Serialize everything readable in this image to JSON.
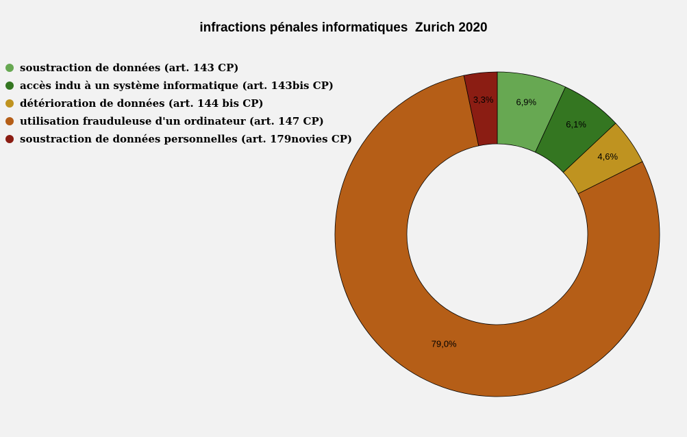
{
  "chart_data": {
    "type": "pie",
    "title": "infractions pénales informatiques  Zurich 2020",
    "donut": true,
    "legend_position": "top-left",
    "slices": [
      {
        "label": "soustraction de données (art. 143 CP)",
        "value": 6.9,
        "value_label": "6,9%",
        "color": "#67a852"
      },
      {
        "label": "accès indu à un système informatique (art. 143bis CP)",
        "value": 6.1,
        "value_label": "6,1%",
        "color": "#347621"
      },
      {
        "label": "détérioration de données (art. 144 bis CP)",
        "value": 4.6,
        "value_label": "4,6%",
        "color": "#bf9320"
      },
      {
        "label": "utilisation frauduleuse d'un ordinateur (art. 147 CP)",
        "value": 79.0,
        "value_label": "79,0%",
        "color": "#b55e17"
      },
      {
        "label": "soustraction de données personnelles (art. 179novies CP)",
        "value": 3.3,
        "value_label": "3,3%",
        "color": "#8b1d13"
      }
    ]
  }
}
